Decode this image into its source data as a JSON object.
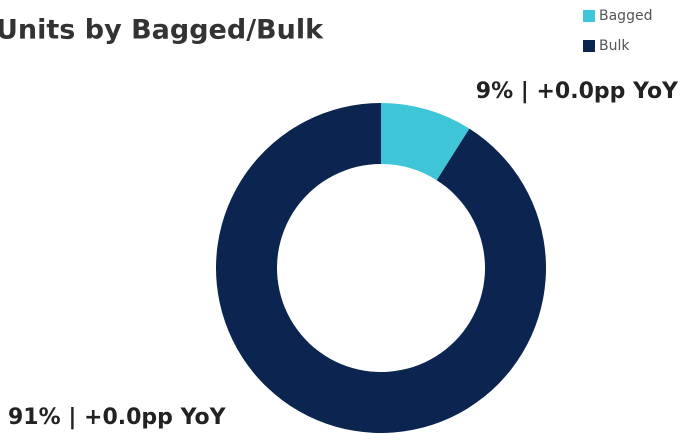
{
  "chart_data": {
    "type": "donut",
    "title": "Units by Bagged/Bulk",
    "categories": [
      "Bagged",
      "Bulk"
    ],
    "values": [
      9,
      91
    ],
    "value_labels": [
      "9% | +0.0pp YoY",
      "91% | +0.0pp YoY"
    ],
    "colors": [
      "#3ec6d8",
      "#0b2550"
    ],
    "legend": "top-right"
  }
}
